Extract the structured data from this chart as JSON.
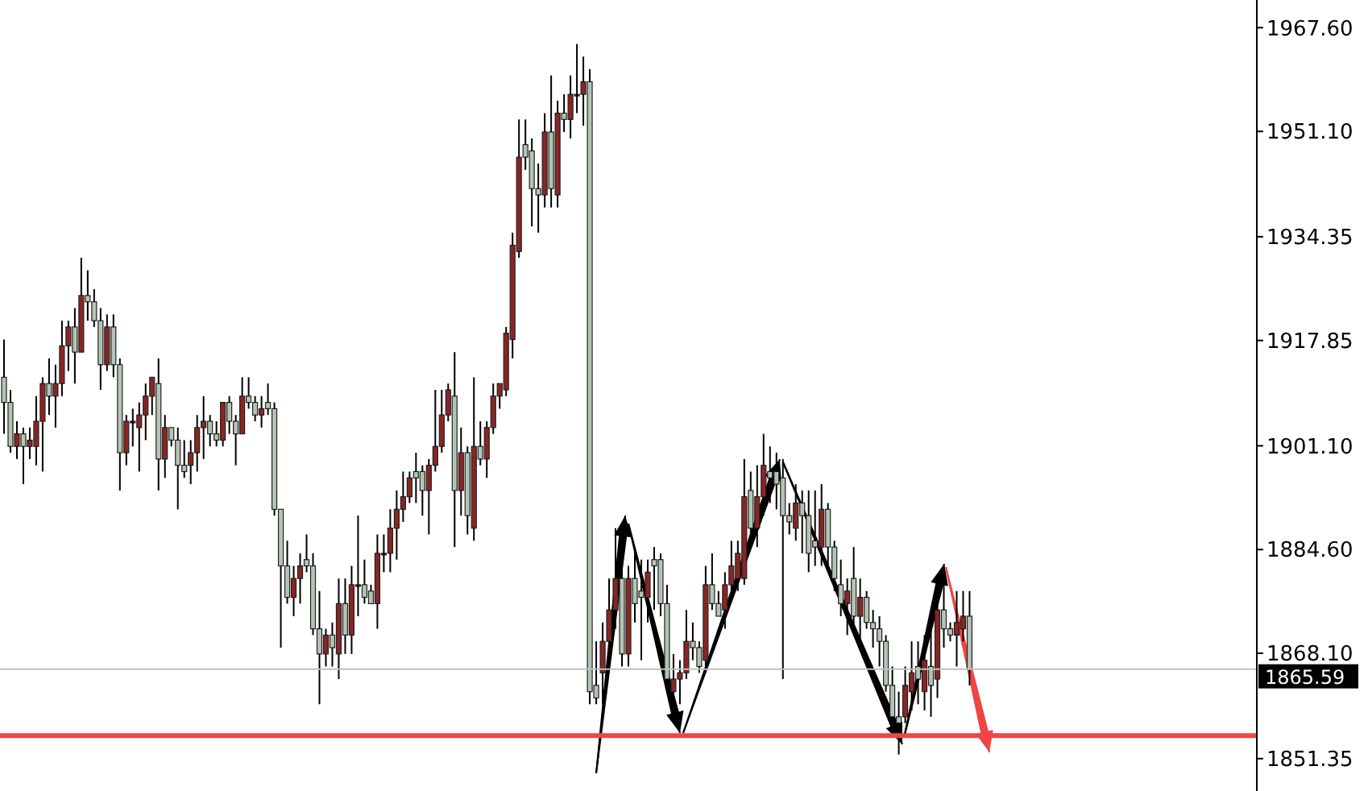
{
  "chart_data": {
    "type": "candlestick",
    "categories": [
      null,
      null,
      null,
      null,
      null,
      null,
      null,
      null,
      null,
      null,
      null,
      null,
      null,
      null,
      null,
      null,
      null,
      null,
      null,
      null,
      null,
      null,
      null,
      null,
      null,
      null,
      null,
      null,
      null,
      null,
      null,
      null,
      null,
      null,
      null,
      null,
      null,
      null,
      null,
      null,
      null,
      null,
      null,
      null,
      null,
      null,
      null,
      null,
      null,
      null,
      null,
      null,
      null,
      null,
      null,
      null,
      null,
      null,
      null,
      null,
      null,
      null,
      null,
      null,
      null,
      null,
      null,
      null,
      null,
      null,
      null,
      null,
      null,
      null,
      null,
      null,
      null,
      null,
      null,
      null,
      null,
      null,
      null,
      null,
      null,
      null,
      null,
      null,
      null,
      null,
      null,
      null,
      null,
      null,
      null,
      null,
      null,
      null,
      null,
      null,
      null,
      null,
      null,
      null,
      null,
      null,
      null,
      null,
      null,
      null,
      null,
      null,
      null,
      null,
      null,
      null,
      null,
      null,
      null,
      null,
      null,
      null,
      null,
      null,
      null,
      null,
      null,
      null,
      null,
      null,
      null,
      null,
      null,
      null,
      null,
      null,
      null,
      null,
      null,
      null,
      null,
      null,
      null,
      null,
      null,
      null,
      null,
      null,
      null,
      null,
      null,
      null,
      null,
      null,
      null,
      null,
      null,
      null,
      null,
      null,
      null,
      null,
      null,
      null,
      null,
      null,
      null,
      null,
      null,
      null,
      null,
      null,
      null,
      null,
      null,
      null,
      null,
      null,
      null,
      null,
      null,
      null,
      null,
      null,
      null,
      null,
      null,
      null,
      null,
      null,
      null,
      null,
      null,
      null,
      null
    ],
    "ohlc": [
      [
        1912,
        1918,
        1903,
        1908
      ],
      [
        1908,
        1910,
        1900,
        1901
      ],
      [
        1901,
        1905,
        1899,
        1903
      ],
      [
        1903,
        1904,
        1895,
        1901
      ],
      [
        1901,
        1904,
        1899,
        1902
      ],
      [
        1901,
        1909,
        1898,
        1905
      ],
      [
        1905,
        1912,
        1897,
        1911
      ],
      [
        1911,
        1915,
        1906,
        1909
      ],
      [
        1909,
        1914,
        1904,
        1911
      ],
      [
        1911,
        1921,
        1909,
        1917
      ],
      [
        1917,
        1921,
        1913,
        1920
      ],
      [
        1920,
        1923,
        1911,
        1916
      ],
      [
        1916,
        1931,
        1916,
        1925
      ],
      [
        1925,
        1929,
        1921,
        1924
      ],
      [
        1924,
        1926,
        1920,
        1921
      ],
      [
        1921,
        1923,
        1910,
        1914
      ],
      [
        1914,
        1922,
        1913,
        1920
      ],
      [
        1920,
        1922,
        1912,
        1914
      ],
      [
        1914,
        1915,
        1894,
        1900
      ],
      [
        1900,
        1906,
        1898,
        1905
      ],
      [
        1905,
        1907,
        1901,
        1905
      ],
      [
        1904,
        1908,
        1897,
        1906
      ],
      [
        1906,
        1911,
        1902,
        1909
      ],
      [
        1909,
        1912,
        1906,
        1912
      ],
      [
        1911,
        1915,
        1894,
        1899
      ],
      [
        1899,
        1906,
        1896,
        1904
      ],
      [
        1904,
        1904,
        1901,
        1902
      ],
      [
        1902,
        1904,
        1891,
        1898
      ],
      [
        1898,
        1902,
        1896,
        1897
      ],
      [
        1898,
        1902,
        1895,
        1900
      ],
      [
        1900,
        1906,
        1897,
        1904
      ],
      [
        1904,
        1909,
        1899,
        1905
      ],
      [
        1905,
        1906,
        1901,
        1903
      ],
      [
        1903,
        1905,
        1901,
        1902
      ],
      [
        1902,
        1908,
        1901,
        1908
      ],
      [
        1908,
        1909,
        1903,
        1905
      ],
      [
        1905,
        1906,
        1898,
        1903
      ],
      [
        1903,
        1912,
        1903,
        1909
      ],
      [
        1909,
        1912,
        1907,
        1908
      ],
      [
        1908,
        1909,
        1905,
        1906
      ],
      [
        1906,
        1909,
        1904,
        1907
      ],
      [
        1908,
        1911,
        1906,
        1907
      ],
      [
        1907,
        1908,
        1890,
        1891
      ],
      [
        1891,
        1891,
        1869,
        1882
      ],
      [
        1882,
        1886,
        1876,
        1877
      ],
      [
        1877,
        1882,
        1874,
        1880
      ],
      [
        1880,
        1884,
        1876,
        1882
      ],
      [
        1883,
        1887,
        1881,
        1882
      ],
      [
        1882,
        1884,
        1871,
        1872
      ],
      [
        1872,
        1878,
        1860,
        1868
      ],
      [
        1868,
        1872,
        1866,
        1871
      ],
      [
        1871,
        1873,
        1866,
        1869
      ],
      [
        1868,
        1880,
        1864,
        1876
      ],
      [
        1876,
        1880,
        1868,
        1871
      ],
      [
        1871,
        1882,
        1868,
        1879
      ],
      [
        1879,
        1890,
        1874,
        1879
      ],
      [
        1879,
        1883,
        1876,
        1877
      ],
      [
        1878,
        1879,
        1876,
        1876
      ],
      [
        1876,
        1887,
        1872,
        1884
      ],
      [
        1884,
        1887,
        1881,
        1884
      ],
      [
        1884,
        1891,
        1881,
        1888
      ],
      [
        1888,
        1894,
        1883,
        1891
      ],
      [
        1891,
        1897,
        1889,
        1893
      ],
      [
        1893,
        1897,
        1892,
        1896
      ],
      [
        1897,
        1900,
        1892,
        1896
      ],
      [
        1897,
        1898,
        1890,
        1894
      ],
      [
        1894,
        1899,
        1887,
        1898
      ],
      [
        1898,
        1910,
        1897,
        1901
      ],
      [
        1901,
        1910,
        1900,
        1906
      ],
      [
        1906,
        1911,
        1905,
        1910
      ],
      [
        1909,
        1916,
        1885,
        1894
      ],
      [
        1894,
        1904,
        1890,
        1900
      ],
      [
        1900,
        1901,
        1887,
        1890
      ],
      [
        1888,
        1912,
        1886,
        1901
      ],
      [
        1901,
        1905,
        1898,
        1899
      ],
      [
        1899,
        1905,
        1896,
        1904
      ],
      [
        1904,
        1911,
        1903,
        1909
      ],
      [
        1909,
        1911,
        1907,
        1911
      ],
      [
        1910,
        1920,
        1909,
        1919
      ],
      [
        1918,
        1935,
        1915,
        1933
      ],
      [
        1932,
        1953,
        1931,
        1947
      ],
      [
        1949,
        1953,
        1945,
        1947
      ],
      [
        1948,
        1950,
        1936,
        1942
      ],
      [
        1942,
        1946,
        1935,
        1941
      ],
      [
        1941,
        1954,
        1939,
        1951
      ],
      [
        1951,
        1960,
        1939,
        1942
      ],
      [
        1941,
        1956,
        1939,
        1954
      ],
      [
        1954,
        1957,
        1951,
        1953
      ],
      [
        1953,
        1960,
        1950,
        1957
      ],
      [
        1957,
        1965,
        1954,
        1957
      ],
      [
        1957,
        1963,
        1952,
        1959
      ],
      [
        1959,
        1961,
        1860,
        1862
      ],
      [
        1863,
        1870,
        1860,
        1861
      ],
      [
        1865,
        1873,
        1860,
        1870
      ],
      [
        1870,
        1880,
        1866,
        1875
      ],
      [
        1875,
        1888,
        1872,
        1880
      ],
      [
        1880,
        1885,
        1866,
        1868
      ],
      [
        1868,
        1882,
        1866,
        1880
      ],
      [
        1880,
        1885,
        1873,
        1876
      ],
      [
        1878,
        1883,
        1867,
        1877
      ],
      [
        1877,
        1883,
        1873,
        1881
      ],
      [
        1883,
        1885,
        1875,
        1882
      ],
      [
        1883,
        1884,
        1874,
        1876
      ],
      [
        1876,
        1879,
        1862,
        1864
      ],
      [
        1862,
        1868,
        1858,
        1864
      ],
      [
        1864,
        1867,
        1860,
        1865
      ],
      [
        1865,
        1875,
        1864,
        1870
      ],
      [
        1870,
        1873,
        1867,
        1869
      ],
      [
        1869,
        1870,
        1865,
        1866
      ],
      [
        1867,
        1882,
        1865,
        1879
      ],
      [
        1879,
        1884,
        1875,
        1876
      ],
      [
        1876,
        1878,
        1874,
        1874
      ],
      [
        1875,
        1881,
        1872,
        1879
      ],
      [
        1879,
        1886,
        1878,
        1882
      ],
      [
        1880,
        1886,
        1878,
        1884
      ],
      [
        1880,
        1899,
        1879,
        1893
      ],
      [
        1894,
        1897,
        1886,
        1888
      ],
      [
        1888,
        1898,
        1885,
        1893
      ],
      [
        1893,
        1903,
        1890,
        1898
      ],
      [
        1897,
        1901,
        1892,
        1896
      ],
      [
        1897,
        1900,
        1891,
        1895
      ],
      [
        1896,
        1899,
        1864,
        1890
      ],
      [
        1890,
        1892,
        1887,
        1889
      ],
      [
        1888,
        1895,
        1886,
        1892
      ],
      [
        1892,
        1894,
        1884,
        1890
      ],
      [
        1890,
        1894,
        1881,
        1884
      ],
      [
        1886,
        1894,
        1882,
        1885
      ],
      [
        1885,
        1895,
        1882,
        1891
      ],
      [
        1891,
        1892,
        1882,
        1885
      ],
      [
        1885,
        1886,
        1878,
        1880
      ],
      [
        1879,
        1883,
        1874,
        1876
      ],
      [
        1876,
        1880,
        1871,
        1878
      ],
      [
        1880,
        1885,
        1872,
        1874
      ],
      [
        1874,
        1880,
        1870,
        1877
      ],
      [
        1877,
        1878,
        1872,
        1873
      ],
      [
        1873,
        1875,
        1869,
        1872
      ],
      [
        1872,
        1874,
        1866,
        1870
      ],
      [
        1870,
        1871,
        1862,
        1863
      ],
      [
        1863,
        1866,
        1855,
        1858
      ],
      [
        1858,
        1862,
        1852,
        1857
      ],
      [
        1858,
        1866,
        1857,
        1863
      ],
      [
        1862,
        1870,
        1859,
        1865
      ],
      [
        1866,
        1870,
        1860,
        1864
      ],
      [
        1862,
        1871,
        1859,
        1867
      ],
      [
        1866,
        1873,
        1858,
        1863
      ],
      [
        1864,
        1880,
        1861,
        1875
      ],
      [
        1875,
        1879,
        1869,
        1872
      ],
      [
        1872,
        1873,
        1870,
        1871
      ],
      [
        1871,
        1878,
        1866,
        1873
      ],
      [
        1872,
        1878,
        1870,
        1874
      ],
      [
        1874,
        1878,
        1863,
        1865.59
      ],
      null,
      null,
      null,
      null,
      null,
      null,
      null,
      null,
      null,
      null,
      null,
      null,
      null,
      null,
      null,
      null,
      null,
      null,
      null,
      null,
      null,
      null,
      null,
      null,
      null,
      null,
      null,
      null,
      null,
      null,
      null,
      null,
      null,
      null,
      null,
      null,
      null,
      null,
      null,
      null,
      null,
      null,
      null,
      null
    ],
    "colors": [
      "#b4c4b4",
      "#b4c4b4",
      "#8b2424",
      "#b4c4b4",
      "#8b2424",
      "#8b2424",
      "#8b2424",
      "#b4c4b4",
      "#8b2424",
      "#8b2424",
      "#8b2424",
      "#b4c4b4",
      "#8b2424",
      "#b4c4b4",
      "#b4c4b4",
      "#b4c4b4",
      "#8b2424",
      "#b4c4b4",
      "#b4c4b4",
      "#8b2424",
      "#8b2424",
      "#8b2424",
      "#8b2424",
      "#8b2424",
      "#b4c4b4",
      "#8b2424",
      "#b4c4b4",
      "#b4c4b4",
      "#b4c4b4",
      "#8b2424",
      "#8b2424",
      "#8b2424",
      "#b4c4b4",
      "#b4c4b4",
      "#8b2424",
      "#b4c4b4",
      "#b4c4b4",
      "#8b2424",
      "#b4c4b4",
      "#b4c4b4",
      "#8b2424",
      "#b4c4b4",
      "#b4c4b4",
      "#b4c4b4",
      "#b4c4b4",
      "#8b2424",
      "#8b2424",
      "#b4c4b4",
      "#b4c4b4",
      "#b4c4b4",
      "#8b2424",
      "#b4c4b4",
      "#8b2424",
      "#b4c4b4",
      "#8b2424",
      "#8b2424",
      "#b4c4b4",
      "#b4c4b4",
      "#8b2424",
      "#8b2424",
      "#8b2424",
      "#8b2424",
      "#8b2424",
      "#8b2424",
      "#b4c4b4",
      "#b4c4b4",
      "#8b2424",
      "#8b2424",
      "#8b2424",
      "#8b2424",
      "#b4c4b4",
      "#8b2424",
      "#b4c4b4",
      "#8b2424",
      "#b4c4b4",
      "#8b2424",
      "#8b2424",
      "#8b2424",
      "#8b2424",
      "#8b2424",
      "#8b2424",
      "#b4c4b4",
      "#b4c4b4",
      "#b4c4b4",
      "#8b2424",
      "#b4c4b4",
      "#8b2424",
      "#b4c4b4",
      "#8b2424",
      "#8b2424",
      "#8b2424",
      "#b4c4b4",
      "#b4c4b4",
      "#8b2424",
      "#8b2424",
      "#8b2424",
      "#b4c4b4",
      "#8b2424",
      "#b4c4b4",
      "#b4c4b4",
      "#8b2424",
      "#b4c4b4",
      "#b4c4b4",
      "#b4c4b4",
      "#8b2424",
      "#8b2424",
      "#8b2424",
      "#b4c4b4",
      "#b4c4b4",
      "#8b2424",
      "#b4c4b4",
      "#b4c4b4",
      "#8b2424",
      "#8b2424",
      "#8b2424",
      "#8b2424",
      "#b4c4b4",
      "#8b2424",
      "#8b2424",
      "#b4c4b4",
      "#b4c4b4",
      "#b4c4b4",
      "#b4c4b4",
      "#8b2424",
      "#b4c4b4",
      "#b4c4b4",
      "#b4c4b4",
      "#8b2424",
      "#b4c4b4",
      "#b4c4b4",
      "#b4c4b4",
      "#8b2424",
      "#b4c4b4",
      "#8b2424",
      "#b4c4b4",
      "#b4c4b4",
      "#b4c4b4",
      "#b4c4b4",
      "#b4c4b4",
      "#b4c4b4",
      "#8b2424",
      "#8b2424",
      "#b4c4b4",
      "#8b2424",
      "#b4c4b4",
      "#8b2424",
      "#b4c4b4",
      "#b4c4b4",
      "#8b2424",
      "#8b2424",
      "#b4c4b4",
      null,
      null,
      null,
      null,
      null,
      null,
      null,
      null,
      null,
      null,
      null,
      null,
      null,
      null,
      null,
      null,
      null,
      null,
      null,
      null,
      null,
      null,
      null,
      null,
      null,
      null,
      null,
      null,
      null,
      null,
      null,
      null,
      null,
      null,
      null,
      null,
      null,
      null,
      null,
      null,
      null,
      null,
      null,
      null
    ],
    "ylim": [
      1846.2,
      1972
    ],
    "yticks": [
      {
        "value": 1851.35,
        "label": "1851.35"
      },
      {
        "value": 1868.1,
        "label": "1868.10"
      },
      {
        "value": 1884.6,
        "label": "1884.60"
      },
      {
        "value": 1901.1,
        "label": "1901.10"
      },
      {
        "value": 1917.85,
        "label": "1917.85"
      },
      {
        "value": 1934.35,
        "label": "1934.35"
      },
      {
        "value": 1951.1,
        "label": "1951.10"
      },
      {
        "value": 1967.6,
        "label": "1967.60"
      }
    ],
    "ref_lines": [
      {
        "axis": "y",
        "value": 1865.59,
        "label": "1865.59",
        "color": "#c0c0c0"
      },
      {
        "axis": "y",
        "value": 1855,
        "color": "#f04545"
      }
    ],
    "tick_labels": "y",
    "grid": false
  }
}
